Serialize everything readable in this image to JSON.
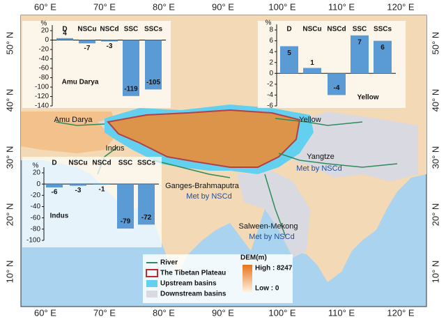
{
  "map": {
    "lon_ticks": [
      "60° E",
      "70° E",
      "80° E",
      "90° E",
      "100° E",
      "110° E",
      "120° E"
    ],
    "lat_ticks": [
      "50° N",
      "40° N",
      "30° N",
      "20° N",
      "10° N"
    ],
    "labels": [
      "Amu Darya",
      "Indus",
      "Ganges-Brahmaputra",
      "Met by NSCd",
      "Yangtze",
      "Met by NSCd",
      "Salween-Mekong",
      "Met by NSCd",
      "Yellow"
    ],
    "legend": {
      "items": [
        "River",
        "The Tibetan Plateau",
        "Upstream basins",
        "Downstream basins"
      ],
      "dem_title": "DEM(m)",
      "dem_high": "High : 8247",
      "dem_low": "Low : 0"
    }
  },
  "chart_data": [
    {
      "type": "bar",
      "title": "Amu Darya",
      "y_label": "%",
      "categories": [
        "D",
        "NSCu",
        "NSCd",
        "SSC",
        "SSCs"
      ],
      "values": [
        4,
        -7,
        -3,
        -119,
        -105
      ],
      "color": "#5b9bd5",
      "ylim": [
        -140,
        20
      ],
      "yticks": [
        20,
        0,
        -20,
        -40,
        -60,
        -80,
        -100,
        -120,
        -140
      ]
    },
    {
      "type": "bar",
      "title": "Yellow",
      "y_label": "%",
      "categories": [
        "D",
        "NSCu",
        "NSCd",
        "SSC",
        "SSCs"
      ],
      "values": [
        5,
        1,
        -4,
        7,
        6
      ],
      "color": "#5b9bd5",
      "ylim": [
        -6,
        8
      ],
      "yticks": [
        8,
        6,
        4,
        2,
        0,
        -2,
        -4,
        -6
      ]
    },
    {
      "type": "bar",
      "title": "Indus",
      "y_label": "%",
      "categories": [
        "D",
        "NSCu",
        "NSCd",
        "SSC",
        "SSCs"
      ],
      "values": [
        -6,
        -3,
        -1,
        -79,
        -72
      ],
      "color": "#5b9bd5",
      "ylim": [
        -100,
        20
      ],
      "yticks": [
        20,
        0,
        -20,
        -40,
        -60,
        -80,
        -100
      ]
    }
  ]
}
